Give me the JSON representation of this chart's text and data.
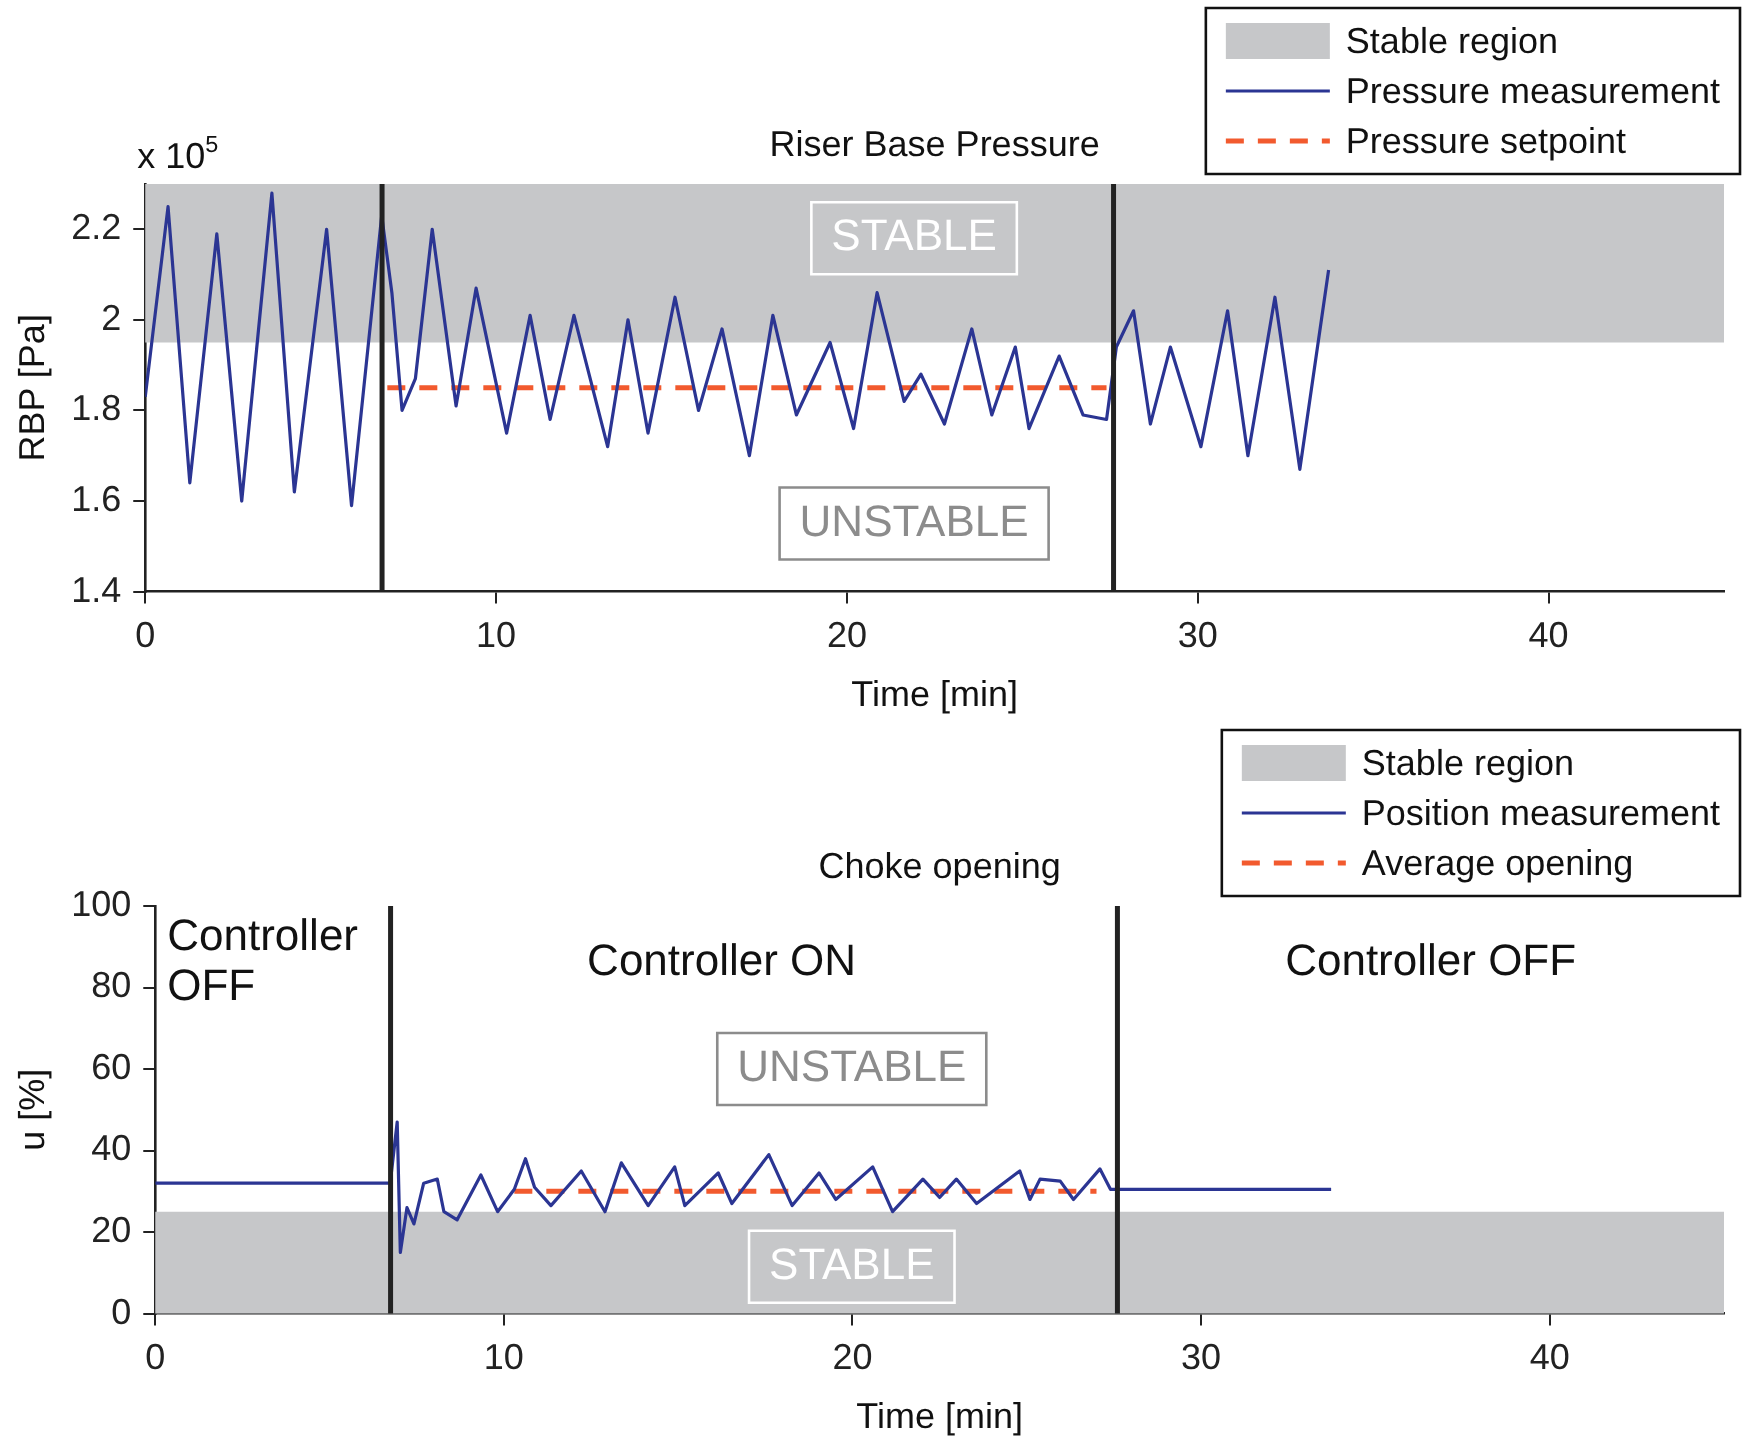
{
  "chart_data": [
    {
      "type": "line",
      "title": "Riser Base Pressure",
      "xlabel": "Time [min]",
      "ylabel": "RBP [Pa]",
      "xlim": [
        0,
        45
      ],
      "xticks": [
        0,
        10,
        20,
        30,
        40
      ],
      "ylim": [
        1.4,
        2.3
      ],
      "yticks": [
        1.4,
        1.6,
        1.8,
        2,
        2.2
      ],
      "grid": false,
      "legend": "top right",
      "bands": [
        {
          "axis": "y",
          "from": 1.95,
          "to": 2.3,
          "label": "Stable region",
          "color": "#c6c7c9"
        }
      ],
      "ref_lines": [
        {
          "axis": "x",
          "value": 6.75,
          "color": "#222222"
        },
        {
          "axis": "x",
          "value": 27.6,
          "color": "#222222"
        }
      ],
      "series": [
        {
          "name": "Pressure measurement",
          "color": "#2b3593",
          "x": [
            0,
            0.65,
            1.27,
            2.04,
            2.75,
            3.61,
            4.25,
            5.17,
            5.88,
            6.74,
            7.03,
            7.32,
            7.7,
            8.18,
            8.86,
            9.43,
            10.3,
            10.97,
            11.54,
            12.22,
            13.18,
            13.76,
            14.33,
            15.1,
            15.77,
            16.44,
            17.22,
            17.89,
            18.56,
            19.52,
            20.19,
            20.86,
            21.63,
            22.11,
            22.78,
            23.56,
            24.13,
            24.8,
            25.19,
            26.05,
            26.73,
            27.4,
            27.68,
            28.17,
            28.65,
            29.22,
            30.09,
            30.85,
            31.43,
            32.2,
            32.91,
            33.73
          ],
          "values": [
            1.83,
            2.25,
            1.64,
            2.19,
            1.6,
            2.28,
            1.62,
            2.2,
            1.59,
            2.23,
            2.06,
            1.8,
            1.87,
            2.2,
            1.81,
            2.07,
            1.75,
            2.01,
            1.78,
            2.01,
            1.72,
            2.0,
            1.75,
            2.05,
            1.8,
            1.98,
            1.7,
            2.01,
            1.79,
            1.95,
            1.76,
            2.06,
            1.82,
            1.88,
            1.77,
            1.98,
            1.79,
            1.94,
            1.76,
            1.92,
            1.79,
            1.78,
            1.94,
            2.02,
            1.77,
            1.94,
            1.72,
            2.02,
            1.7,
            2.05,
            1.67,
            2.11
          ]
        },
        {
          "name": "Pressure setpoint",
          "color": "#f25a2e",
          "line_style": "dashed",
          "x": [
            6.9,
            27.4
          ],
          "values": [
            1.85,
            1.85
          ]
        }
      ],
      "annotations": [
        "x 10$^{5}$",
        "STABLE",
        "UNSTABLE"
      ]
    },
    {
      "type": "line",
      "title": "Choke opening",
      "xlabel": "Time [min]",
      "ylabel": "u [%]",
      "xlim": [
        0,
        45
      ],
      "xticks": [
        0,
        10,
        20,
        30,
        40
      ],
      "ylim": [
        0,
        100
      ],
      "yticks": [
        0,
        20,
        40,
        60,
        80,
        100
      ],
      "grid": false,
      "legend": "top right",
      "bands": [
        {
          "axis": "y",
          "from": 0,
          "to": 25,
          "label": "Stable region",
          "color": "#c6c7c9"
        }
      ],
      "ref_lines": [
        {
          "axis": "x",
          "value": 6.75,
          "color": "#222222"
        },
        {
          "axis": "x",
          "value": 27.6,
          "color": "#222222"
        }
      ],
      "series": [
        {
          "name": "Position measurement",
          "color": "#2b3593",
          "x": [
            0,
            6.74,
            6.94,
            7.03,
            7.22,
            7.42,
            7.7,
            8.09,
            8.28,
            8.66,
            9.34,
            9.82,
            10.3,
            10.62,
            10.88,
            11.35,
            12.22,
            12.9,
            13.37,
            14.14,
            14.62,
            14.9,
            15.19,
            16.15,
            16.54,
            17.6,
            18.27,
            19.04,
            19.52,
            20.58,
            21.15,
            22.02,
            22.5,
            22.98,
            23.56,
            24.8,
            25.09,
            25.38,
            25.96,
            26.34,
            27.1,
            27.4,
            33.73
          ],
          "values": [
            32,
            32,
            47,
            15,
            26,
            22,
            32,
            33,
            25,
            23,
            34,
            25,
            30.5,
            38,
            31,
            26.5,
            35,
            25,
            37,
            26.5,
            32.5,
            36,
            26.5,
            34.5,
            27,
            39,
            26.5,
            34.5,
            28,
            36,
            25,
            33,
            28.5,
            33,
            27,
            35,
            28,
            33,
            32.5,
            28,
            35.5,
            30.5,
            30.5
          ]
        },
        {
          "name": "Average opening",
          "color": "#f25a2e",
          "line_style": "dashed",
          "x": [
            10.3,
            27.0
          ],
          "values": [
            30,
            30
          ]
        }
      ],
      "annotations": [
        "Controller OFF",
        "Controller ON",
        "Controller OFF",
        "UNSTABLE",
        "STABLE"
      ]
    }
  ]
}
